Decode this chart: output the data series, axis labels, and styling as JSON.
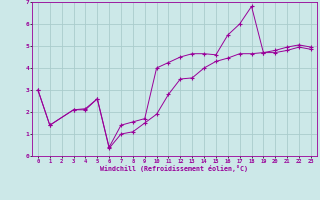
{
  "xlabel": "Windchill (Refroidissement éolien,°C)",
  "background_color": "#cce8e8",
  "line_color": "#990099",
  "grid_color": "#aacccc",
  "xlim": [
    -0.5,
    23.5
  ],
  "ylim": [
    0,
    7
  ],
  "xticks": [
    0,
    1,
    2,
    3,
    4,
    5,
    6,
    7,
    8,
    9,
    10,
    11,
    12,
    13,
    14,
    15,
    16,
    17,
    18,
    19,
    20,
    21,
    22,
    23
  ],
  "yticks": [
    0,
    1,
    2,
    3,
    4,
    5,
    6,
    7
  ],
  "line1_x": [
    0,
    1,
    3,
    4,
    5,
    6,
    7,
    8,
    9,
    10,
    11,
    12,
    13,
    14,
    15,
    16,
    17,
    18,
    19,
    20,
    21,
    22,
    23
  ],
  "line1_y": [
    3.0,
    1.4,
    2.1,
    2.1,
    2.6,
    0.4,
    1.4,
    1.55,
    1.7,
    4.0,
    4.25,
    4.5,
    4.65,
    4.65,
    4.6,
    5.5,
    6.0,
    6.8,
    4.7,
    4.7,
    4.8,
    4.95,
    4.85
  ],
  "line2_x": [
    0,
    1,
    3,
    4,
    5,
    6,
    7,
    8,
    9,
    10,
    11,
    12,
    13,
    14,
    15,
    16,
    17,
    18,
    19,
    20,
    21,
    22,
    23
  ],
  "line2_y": [
    3.0,
    1.4,
    2.1,
    2.15,
    2.6,
    0.35,
    1.0,
    1.1,
    1.5,
    1.9,
    2.8,
    3.5,
    3.55,
    4.0,
    4.3,
    4.45,
    4.65,
    4.65,
    4.7,
    4.8,
    4.95,
    5.05,
    4.95
  ]
}
